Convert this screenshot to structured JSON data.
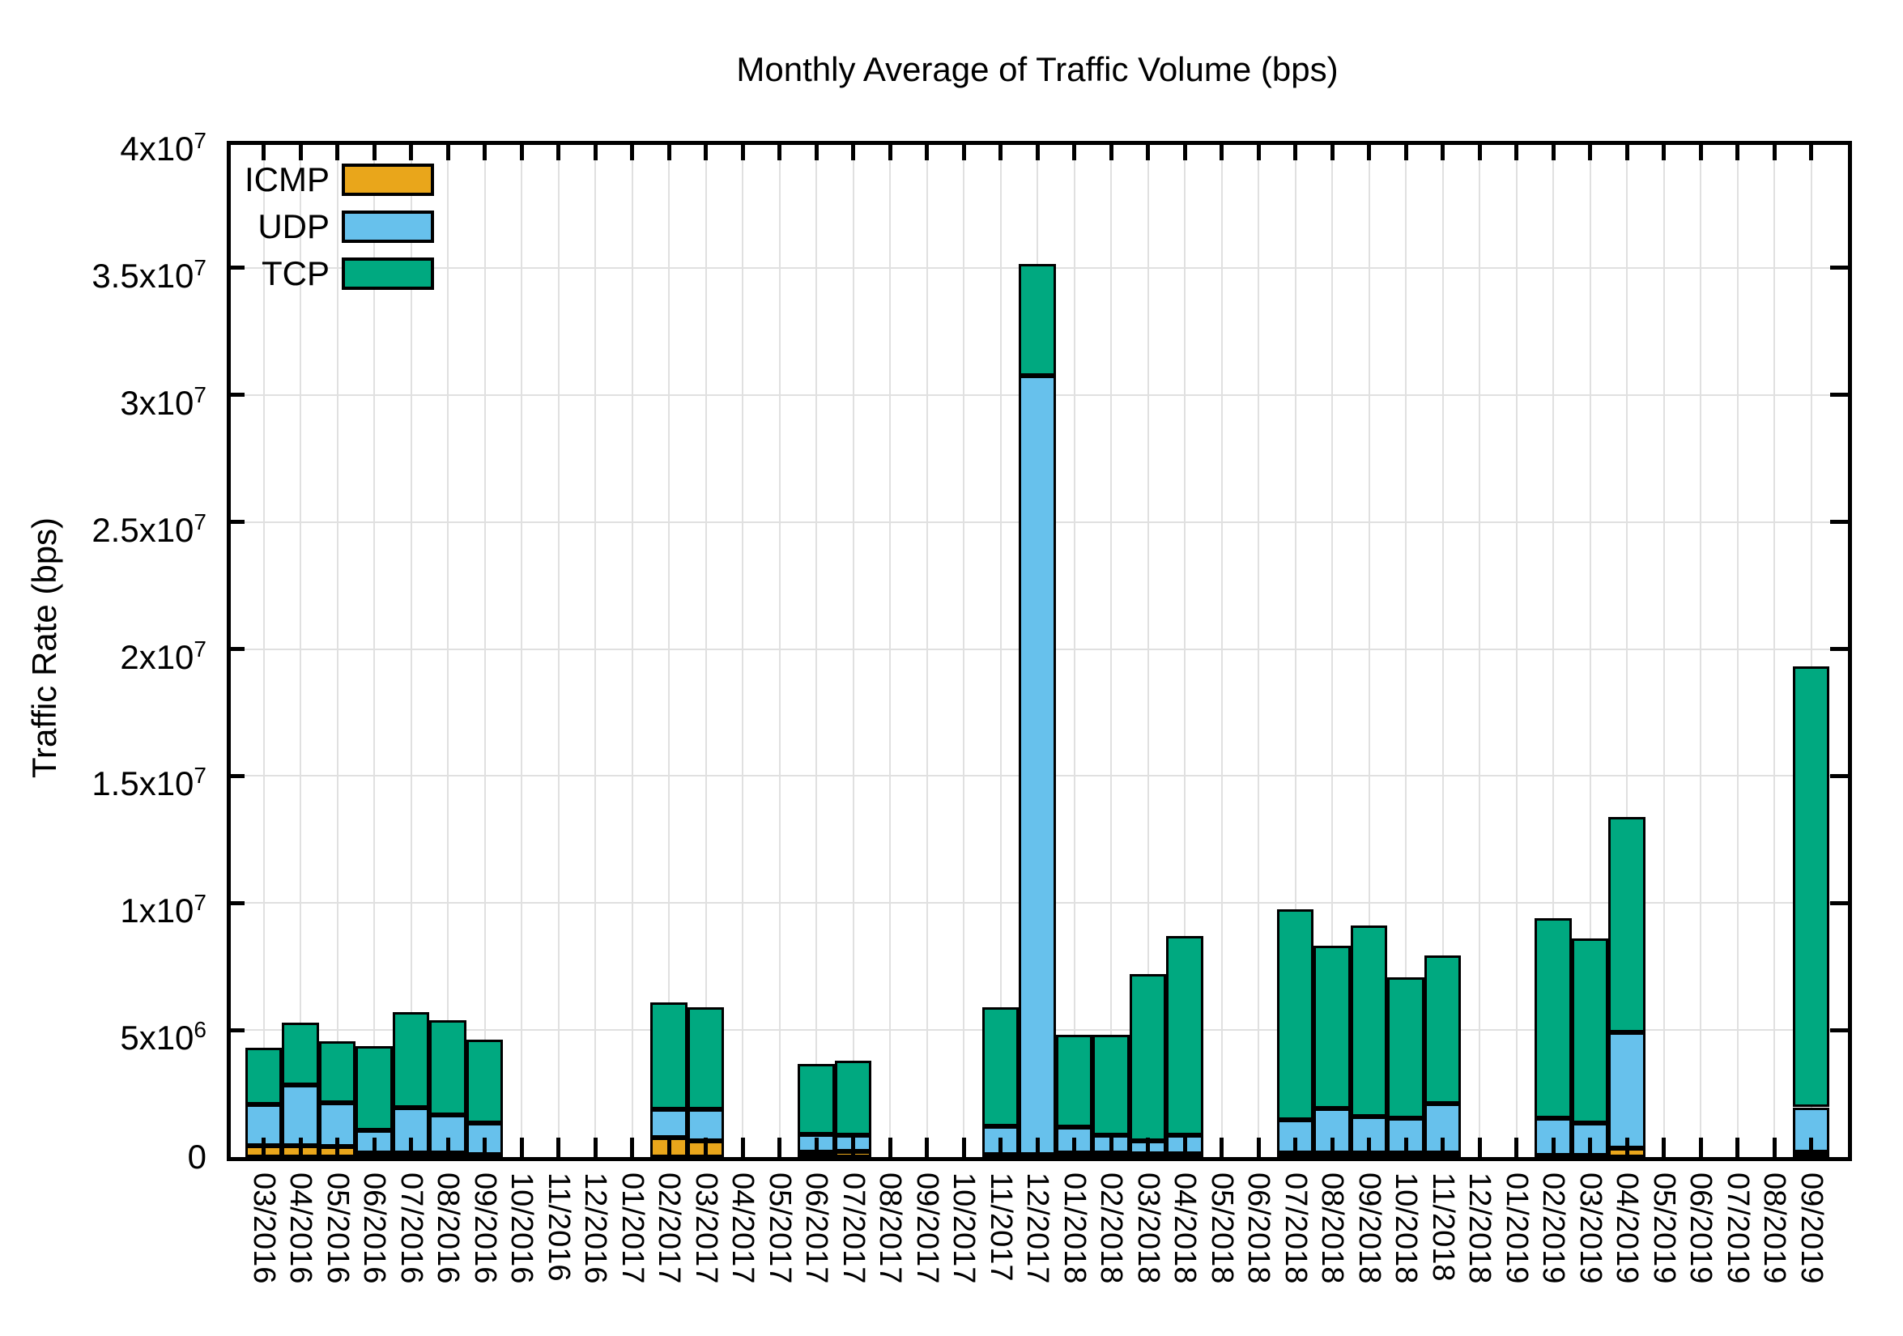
{
  "chart_data": {
    "type": "bar",
    "stacked": true,
    "title": "Monthly Average of Traffic Volume (bps)",
    "ylabel": "Traffic Rate (bps)",
    "xlabel": "",
    "ylim": [
      0,
      40000000
    ],
    "grid": true,
    "legend_position": "top-left-inside",
    "categories": [
      "03/2016",
      "04/2016",
      "05/2016",
      "06/2016",
      "07/2016",
      "08/2016",
      "09/2016",
      "10/2016",
      "11/2016",
      "12/2016",
      "01/2017",
      "02/2017",
      "03/2017",
      "04/2017",
      "05/2017",
      "06/2017",
      "07/2017",
      "08/2017",
      "09/2017",
      "10/2017",
      "11/2017",
      "12/2017",
      "01/2018",
      "02/2018",
      "03/2018",
      "04/2018",
      "05/2018",
      "06/2018",
      "07/2018",
      "08/2018",
      "09/2018",
      "10/2018",
      "11/2018",
      "12/2018",
      "01/2019",
      "02/2019",
      "03/2019",
      "04/2019",
      "05/2019",
      "06/2019",
      "07/2019",
      "08/2019",
      "09/2019"
    ],
    "yticks": [
      {
        "value": 0,
        "label": "0",
        "sup": ""
      },
      {
        "value": 5000000,
        "label": "5x10",
        "sup": "6"
      },
      {
        "value": 10000000,
        "label": "1x10",
        "sup": "7"
      },
      {
        "value": 15000000,
        "label": "1.5x10",
        "sup": "7"
      },
      {
        "value": 20000000,
        "label": "2x10",
        "sup": "7"
      },
      {
        "value": 25000000,
        "label": "2.5x10",
        "sup": "7"
      },
      {
        "value": 30000000,
        "label": "3x10",
        "sup": "7"
      },
      {
        "value": 35000000,
        "label": "3.5x10",
        "sup": "7"
      },
      {
        "value": 40000000,
        "label": "4x10",
        "sup": "7"
      }
    ],
    "series": [
      {
        "name": "ICMP",
        "color": "#E9A61B",
        "values": [
          450000,
          450000,
          400000,
          160000,
          150000,
          150000,
          100000,
          0,
          0,
          0,
          0,
          750000,
          630000,
          0,
          0,
          180000,
          210000,
          0,
          0,
          0,
          100000,
          100000,
          160000,
          150000,
          130000,
          130000,
          0,
          0,
          150000,
          150000,
          150000,
          150000,
          150000,
          0,
          0,
          50000,
          50000,
          360000,
          0,
          0,
          0,
          0,
          200000
        ]
      },
      {
        "name": "UDP",
        "color": "#67C1EC",
        "values": [
          1620000,
          2400000,
          1730000,
          900000,
          1800000,
          1500000,
          1250000,
          0,
          0,
          0,
          0,
          1140000,
          1260000,
          0,
          0,
          700000,
          650000,
          0,
          0,
          0,
          1100000,
          30650000,
          1020000,
          720000,
          510000,
          740000,
          0,
          0,
          1310000,
          1750000,
          1430000,
          1380000,
          1960000,
          0,
          0,
          1480000,
          1290000,
          4540000,
          0,
          0,
          0,
          0,
          1760000
        ]
      },
      {
        "name": "TCP",
        "color": "#00A980",
        "values": [
          2240000,
          2450000,
          2420000,
          3320000,
          3750000,
          3730000,
          3270000,
          0,
          0,
          0,
          0,
          4190000,
          4000000,
          0,
          0,
          2800000,
          2940000,
          0,
          0,
          0,
          4700000,
          4400000,
          3620000,
          3930000,
          6560000,
          7830000,
          0,
          0,
          8290000,
          6430000,
          7520000,
          5550000,
          5840000,
          0,
          0,
          7870000,
          7260000,
          8500000,
          0,
          0,
          0,
          0,
          17340000
        ]
      }
    ],
    "colors": {
      "axis": "#000000",
      "grid": "#e0e0e0",
      "background": "#ffffff"
    }
  }
}
